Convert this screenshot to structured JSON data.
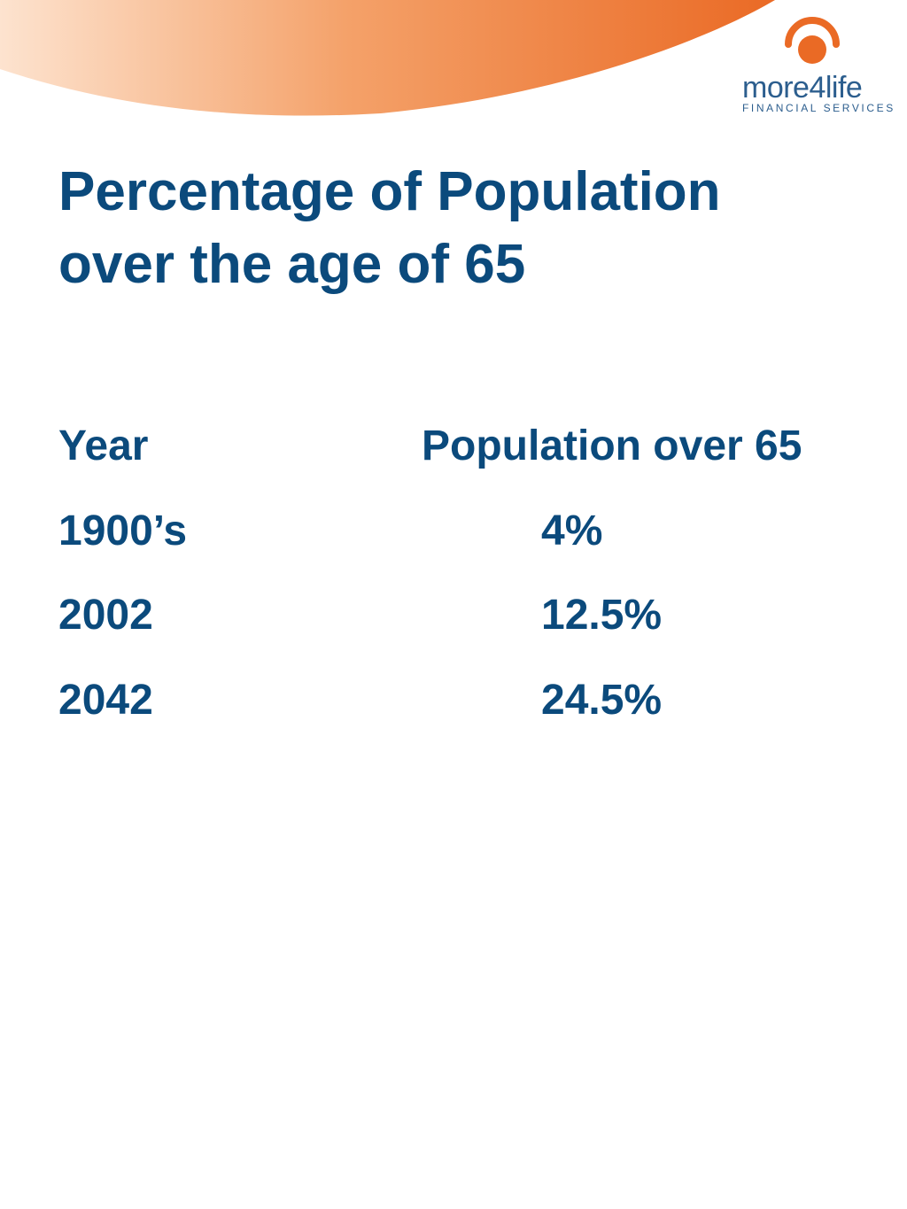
{
  "brand": {
    "name": "more4life",
    "tagline": "FINANCIAL SERVICES",
    "colors": {
      "navy": "#0b4a7c",
      "orange": "#ea6a25",
      "peach": "#fde3cf"
    }
  },
  "slide": {
    "title_line1": "Percentage of Population",
    "title_line2": "over the age of 65"
  },
  "table": {
    "headers": [
      "Year",
      "Population over 65"
    ],
    "rows": [
      [
        "1900’s",
        "4%"
      ],
      [
        "2002",
        "12.5%"
      ],
      [
        "2042",
        "24.5%"
      ]
    ]
  }
}
